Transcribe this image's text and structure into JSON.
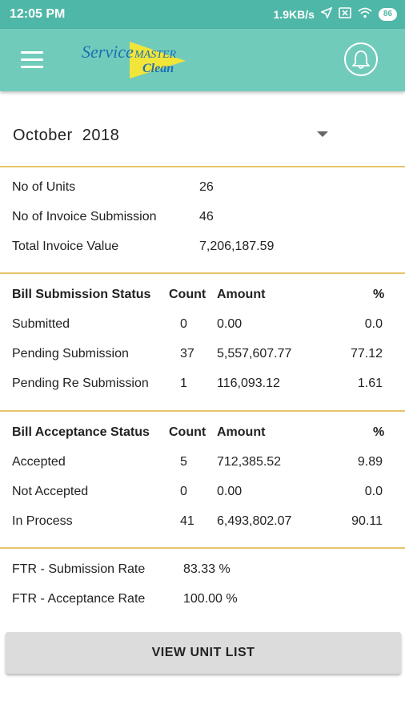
{
  "status_bar": {
    "time": "12:05 PM",
    "speed": "1.9KB/s",
    "battery": "86"
  },
  "app_bar": {
    "logo_text_1": "Service",
    "logo_text_2": "MASTER",
    "logo_text_3": "Clean",
    "colors": {
      "bar": "#71cbbb",
      "status": "#4fb7a7",
      "accent": "#e5c56a"
    }
  },
  "month": "October  2018",
  "summary": [
    {
      "label": "No of Units",
      "value": "26"
    },
    {
      "label": "No of Invoice Submission",
      "value": "46"
    },
    {
      "label": "Total Invoice Value",
      "value": "7,206,187.59"
    }
  ],
  "bill_submission": {
    "headers": {
      "status": "Bill Submission Status",
      "count": "Count",
      "amount": "Amount",
      "pct": "%"
    },
    "rows": [
      {
        "status": "Submitted",
        "count": "0",
        "amount": "0.00",
        "pct": "0.0"
      },
      {
        "status": "Pending Submission",
        "count": "37",
        "amount": "5,557,607.77",
        "pct": "77.12"
      },
      {
        "status": "Pending Re Submission",
        "count": "1",
        "amount": "116,093.12",
        "pct": "1.61"
      }
    ]
  },
  "bill_acceptance": {
    "headers": {
      "status": "Bill Acceptance  Status",
      "count": "Count",
      "amount": "Amount",
      "pct": "%"
    },
    "rows": [
      {
        "status": "Accepted",
        "count": "5",
        "amount": "712,385.52",
        "pct": "9.89"
      },
      {
        "status": "Not Accepted",
        "count": "0",
        "amount": "0.00",
        "pct": "0.0"
      },
      {
        "status": "In Process",
        "count": "41",
        "amount": "6,493,802.07",
        "pct": "90.11"
      }
    ]
  },
  "ftr": [
    {
      "label": "FTR - Submission Rate",
      "value": "83.33 %"
    },
    {
      "label": "FTR - Acceptance Rate",
      "value": "100.00 %"
    }
  ],
  "button_label": "VIEW UNIT LIST"
}
